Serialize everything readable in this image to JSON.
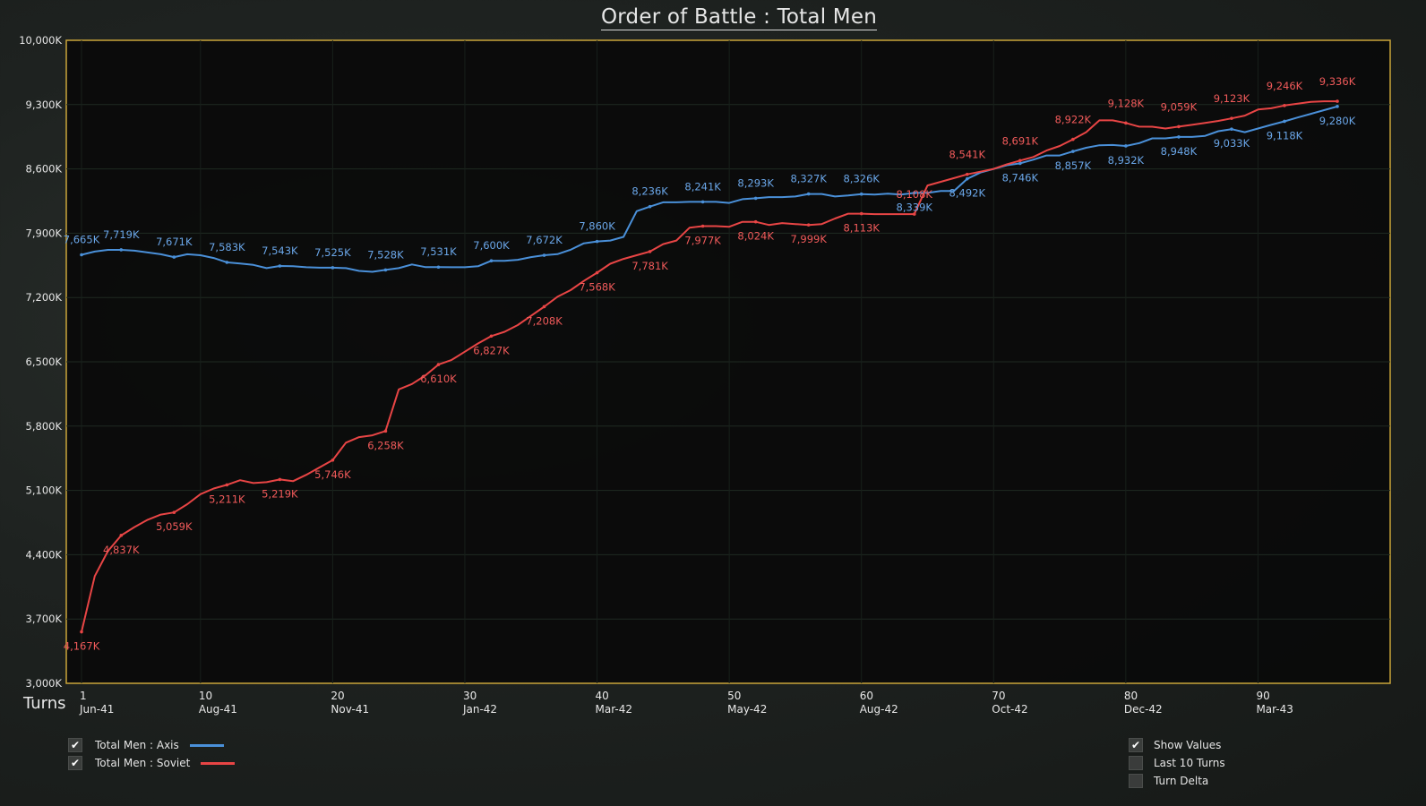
{
  "title": "Order of Battle : Total Men",
  "turns_label": "Turns",
  "legend": [
    {
      "label": "Total Men : Axis",
      "color": "#4a90d9",
      "checked": true
    },
    {
      "label": "Total Men : Soviet",
      "color": "#e84545",
      "checked": true
    }
  ],
  "options": [
    {
      "label": "Show Values",
      "checked": true
    },
    {
      "label": "Last 10 Turns",
      "checked": false
    },
    {
      "label": "Turn Delta",
      "checked": false
    }
  ],
  "colors": {
    "frame": "#c9a53a",
    "axis": "#4a90d9",
    "soviet": "#e84545",
    "plot_bg": "#0a0a0a"
  },
  "chart_data": {
    "type": "line",
    "title": "Order of Battle : Total Men",
    "xlabel": "Turns",
    "ylabel": "",
    "xlim": [
      0,
      99
    ],
    "ylim": [
      3000,
      10000
    ],
    "grid": true,
    "y_ticks": [
      "3,000K",
      "3,700K",
      "4,400K",
      "5,100K",
      "5,800K",
      "6,500K",
      "7,200K",
      "7,900K",
      "8,600K",
      "9,300K",
      "10,000K"
    ],
    "y_tick_values": [
      3000,
      3700,
      4400,
      5100,
      5800,
      6500,
      7200,
      7900,
      8600,
      9300,
      10000
    ],
    "x_ticks": [
      {
        "turn": 1,
        "num": "1",
        "date": "Jun-41"
      },
      {
        "turn": 10,
        "num": "10",
        "date": "Aug-41"
      },
      {
        "turn": 20,
        "num": "20",
        "date": "Nov-41"
      },
      {
        "turn": 30,
        "num": "30",
        "date": "Jan-42"
      },
      {
        "turn": 40,
        "num": "40",
        "date": "Mar-42"
      },
      {
        "turn": 50,
        "num": "50",
        "date": "May-42"
      },
      {
        "turn": 60,
        "num": "60",
        "date": "Aug-42"
      },
      {
        "turn": 70,
        "num": "70",
        "date": "Oct-42"
      },
      {
        "turn": 80,
        "num": "80",
        "date": "Dec-42"
      },
      {
        "turn": 90,
        "num": "90",
        "date": "Mar-43"
      }
    ],
    "series": [
      {
        "name": "Total Men : Axis",
        "color": "#4a90d9",
        "points": [
          [
            1,
            7665
          ],
          [
            2,
            7700
          ],
          [
            3,
            7719
          ],
          [
            4,
            7719
          ],
          [
            5,
            7710
          ],
          [
            6,
            7690
          ],
          [
            7,
            7671
          ],
          [
            8,
            7640
          ],
          [
            9,
            7671
          ],
          [
            10,
            7660
          ],
          [
            11,
            7630
          ],
          [
            12,
            7583
          ],
          [
            13,
            7570
          ],
          [
            14,
            7555
          ],
          [
            15,
            7520
          ],
          [
            16,
            7543
          ],
          [
            17,
            7540
          ],
          [
            18,
            7530
          ],
          [
            19,
            7525
          ],
          [
            20,
            7525
          ],
          [
            21,
            7520
          ],
          [
            22,
            7490
          ],
          [
            23,
            7480
          ],
          [
            24,
            7500
          ],
          [
            25,
            7520
          ],
          [
            26,
            7560
          ],
          [
            27,
            7531
          ],
          [
            28,
            7531
          ],
          [
            29,
            7530
          ],
          [
            30,
            7530
          ],
          [
            31,
            7540
          ],
          [
            32,
            7600
          ],
          [
            33,
            7600
          ],
          [
            34,
            7610
          ],
          [
            35,
            7640
          ],
          [
            36,
            7660
          ],
          [
            37,
            7672
          ],
          [
            38,
            7720
          ],
          [
            39,
            7790
          ],
          [
            40,
            7810
          ],
          [
            41,
            7820
          ],
          [
            42,
            7860
          ],
          [
            43,
            8140
          ],
          [
            44,
            8190
          ],
          [
            45,
            8236
          ],
          [
            46,
            8236
          ],
          [
            47,
            8241
          ],
          [
            48,
            8241
          ],
          [
            49,
            8241
          ],
          [
            50,
            8230
          ],
          [
            51,
            8270
          ],
          [
            52,
            8280
          ],
          [
            53,
            8293
          ],
          [
            54,
            8293
          ],
          [
            55,
            8300
          ],
          [
            56,
            8327
          ],
          [
            57,
            8327
          ],
          [
            58,
            8300
          ],
          [
            59,
            8310
          ],
          [
            60,
            8326
          ],
          [
            61,
            8320
          ],
          [
            62,
            8330
          ],
          [
            63,
            8320
          ],
          [
            64,
            8339
          ],
          [
            65,
            8339
          ],
          [
            66,
            8360
          ],
          [
            67,
            8360
          ],
          [
            68,
            8492
          ],
          [
            69,
            8560
          ],
          [
            70,
            8600
          ],
          [
            71,
            8640
          ],
          [
            72,
            8660
          ],
          [
            73,
            8700
          ],
          [
            74,
            8746
          ],
          [
            75,
            8746
          ],
          [
            76,
            8790
          ],
          [
            77,
            8830
          ],
          [
            78,
            8857
          ],
          [
            79,
            8860
          ],
          [
            80,
            8850
          ],
          [
            81,
            8880
          ],
          [
            82,
            8932
          ],
          [
            83,
            8932
          ],
          [
            84,
            8948
          ],
          [
            85,
            8948
          ],
          [
            86,
            8960
          ],
          [
            87,
            9010
          ],
          [
            88,
            9033
          ],
          [
            89,
            9000
          ],
          [
            90,
            9040
          ],
          [
            91,
            9080
          ],
          [
            92,
            9118
          ],
          [
            93,
            9160
          ],
          [
            94,
            9200
          ],
          [
            95,
            9240
          ],
          [
            96,
            9280
          ]
        ],
        "labels": [
          [
            1,
            "7,665K"
          ],
          [
            4,
            "7,719K"
          ],
          [
            8,
            "7,671K"
          ],
          [
            12,
            "7,583K"
          ],
          [
            16,
            "7,543K"
          ],
          [
            20,
            "7,525K"
          ],
          [
            24,
            "7,528K"
          ],
          [
            28,
            "7,531K"
          ],
          [
            32,
            "7,600K"
          ],
          [
            36,
            "7,672K"
          ],
          [
            40,
            "7,860K"
          ],
          [
            44,
            "8,236K"
          ],
          [
            48,
            "8,241K"
          ],
          [
            52,
            "8,293K"
          ],
          [
            56,
            "8,327K"
          ],
          [
            60,
            "8,326K"
          ],
          [
            64,
            "8,339K"
          ],
          [
            68,
            "8,492K"
          ],
          [
            72,
            "8,746K"
          ],
          [
            76,
            "8,857K"
          ],
          [
            80,
            "8,932K"
          ],
          [
            84,
            "8,948K"
          ],
          [
            88,
            "9,033K"
          ],
          [
            92,
            "9,118K"
          ],
          [
            96,
            "9,280K"
          ]
        ]
      },
      {
        "name": "Total Men : Soviet",
        "color": "#e84545",
        "points": [
          [
            1,
            3560
          ],
          [
            2,
            4167
          ],
          [
            3,
            4440
          ],
          [
            4,
            4610
          ],
          [
            5,
            4700
          ],
          [
            6,
            4780
          ],
          [
            7,
            4837
          ],
          [
            8,
            4860
          ],
          [
            9,
            4950
          ],
          [
            10,
            5059
          ],
          [
            11,
            5120
          ],
          [
            12,
            5160
          ],
          [
            13,
            5211
          ],
          [
            14,
            5180
          ],
          [
            15,
            5190
          ],
          [
            16,
            5219
          ],
          [
            17,
            5200
          ],
          [
            18,
            5270
          ],
          [
            19,
            5350
          ],
          [
            20,
            5430
          ],
          [
            21,
            5620
          ],
          [
            22,
            5680
          ],
          [
            23,
            5700
          ],
          [
            24,
            5746
          ],
          [
            25,
            6200
          ],
          [
            26,
            6258
          ],
          [
            27,
            6350
          ],
          [
            28,
            6470
          ],
          [
            29,
            6520
          ],
          [
            30,
            6610
          ],
          [
            31,
            6700
          ],
          [
            32,
            6780
          ],
          [
            33,
            6827
          ],
          [
            34,
            6900
          ],
          [
            35,
            7000
          ],
          [
            36,
            7100
          ],
          [
            37,
            7208
          ],
          [
            38,
            7280
          ],
          [
            39,
            7380
          ],
          [
            40,
            7470
          ],
          [
            41,
            7568
          ],
          [
            42,
            7620
          ],
          [
            43,
            7660
          ],
          [
            44,
            7700
          ],
          [
            45,
            7781
          ],
          [
            46,
            7820
          ],
          [
            47,
            7960
          ],
          [
            48,
            7977
          ],
          [
            49,
            7977
          ],
          [
            50,
            7970
          ],
          [
            51,
            8024
          ],
          [
            52,
            8024
          ],
          [
            53,
            7990
          ],
          [
            54,
            8010
          ],
          [
            55,
            7999
          ],
          [
            56,
            7990
          ],
          [
            57,
            7999
          ],
          [
            58,
            8060
          ],
          [
            59,
            8113
          ],
          [
            60,
            8113
          ],
          [
            61,
            8108
          ],
          [
            62,
            8108
          ],
          [
            63,
            8108
          ],
          [
            64,
            8108
          ],
          [
            65,
            8420
          ],
          [
            66,
            8460
          ],
          [
            67,
            8500
          ],
          [
            68,
            8541
          ],
          [
            69,
            8570
          ],
          [
            70,
            8600
          ],
          [
            71,
            8650
          ],
          [
            72,
            8691
          ],
          [
            73,
            8730
          ],
          [
            74,
            8800
          ],
          [
            75,
            8850
          ],
          [
            76,
            8922
          ],
          [
            77,
            9000
          ],
          [
            78,
            9128
          ],
          [
            79,
            9128
          ],
          [
            80,
            9100
          ],
          [
            81,
            9060
          ],
          [
            82,
            9059
          ],
          [
            83,
            9040
          ],
          [
            84,
            9060
          ],
          [
            85,
            9080
          ],
          [
            86,
            9100
          ],
          [
            87,
            9123
          ],
          [
            88,
            9150
          ],
          [
            89,
            9180
          ],
          [
            90,
            9246
          ],
          [
            91,
            9260
          ],
          [
            92,
            9290
          ],
          [
            93,
            9310
          ],
          [
            94,
            9330
          ],
          [
            95,
            9336
          ],
          [
            96,
            9336
          ]
        ],
        "labels": [
          [
            1,
            "4,167K"
          ],
          [
            4,
            "4,837K"
          ],
          [
            8,
            "5,059K"
          ],
          [
            12,
            "5,211K"
          ],
          [
            16,
            "5,219K"
          ],
          [
            20,
            "5,746K"
          ],
          [
            24,
            "6,258K"
          ],
          [
            28,
            "6,610K"
          ],
          [
            32,
            "6,827K"
          ],
          [
            36,
            "7,208K"
          ],
          [
            40,
            "7,568K"
          ],
          [
            44,
            "7,781K"
          ],
          [
            48,
            "7,977K"
          ],
          [
            52,
            "8,024K"
          ],
          [
            56,
            "7,999K"
          ],
          [
            60,
            "8,113K"
          ],
          [
            64,
            "8,108K"
          ],
          [
            68,
            "8,541K"
          ],
          [
            72,
            "8,691K"
          ],
          [
            76,
            "8,922K"
          ],
          [
            80,
            "9,128K"
          ],
          [
            84,
            "9,059K"
          ],
          [
            88,
            "9,123K"
          ],
          [
            92,
            "9,246K"
          ],
          [
            96,
            "9,336K"
          ]
        ]
      }
    ]
  }
}
